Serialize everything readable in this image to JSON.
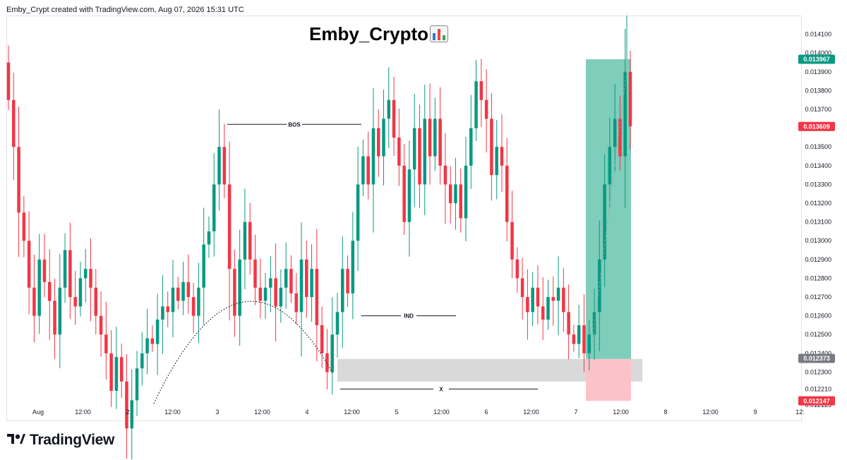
{
  "header": {
    "text": "Emby_Crypt created with TradingView.com, Aug 07, 2026 15:31 UTC"
  },
  "chart_title": "Emby_Crypto",
  "title_icon": "bar-chart-emoji-icon",
  "footer": {
    "brand": "TradingView",
    "logo_icon": "tradingview-logo-icon"
  },
  "colors": {
    "up": "#089981",
    "down": "#f23645",
    "tp_zone": "#7fcdbb",
    "sl_zone": "#fbc3c8",
    "demand_zone": "#d9d9d9",
    "price_badge_gray": "#787b86"
  },
  "chart_data": {
    "type": "candlestick",
    "ylim": [
      0.01214,
      0.01417
    ],
    "y_ticks": [
      "0.014100",
      "0.014000",
      "0.013900",
      "0.013800",
      "0.013700",
      "0.013600",
      "0.013500",
      "0.013400",
      "0.013300",
      "0.013200",
      "0.013100",
      "0.013000",
      "0.012900",
      "0.012800",
      "0.012700",
      "0.012600",
      "0.012500",
      "0.012400",
      "0.012300",
      "0.012210",
      "0.012125"
    ],
    "x_ticks": [
      "Aug",
      "12:00",
      "2",
      "12:00",
      "3",
      "12:00",
      "4",
      "12:00",
      "5",
      "12:00",
      "6",
      "12:00",
      "7",
      "12:00",
      "8",
      "12:00",
      "9",
      "12:"
    ],
    "price_badges": [
      {
        "label": "0.013967",
        "value": 0.013967,
        "color": "#089981"
      },
      {
        "label": "0.013609",
        "value": 0.013609,
        "color": "#f23645"
      },
      {
        "label": "0.012373",
        "value": 0.012373,
        "color": "#787b86"
      },
      {
        "label": "0.012147",
        "value": 0.012147,
        "color": "#f23645"
      }
    ],
    "annotations": [
      {
        "label": "BOS",
        "value": 0.01362
      },
      {
        "label": "IND",
        "value": 0.0126
      },
      {
        "label": "X",
        "value": 0.01221
      }
    ],
    "zones": [
      {
        "name": "demand",
        "low": 0.01225,
        "high": 0.01237
      },
      {
        "name": "take-profit",
        "low": 0.01237,
        "high": 0.013967
      },
      {
        "name": "stop-loss",
        "low": 0.012147,
        "high": 0.01237
      }
    ],
    "close_series": [
      0.01375,
      0.0135,
      0.01315,
      0.013,
      0.01275,
      0.0126,
      0.0129,
      0.01278,
      0.01268,
      0.0125,
      0.01275,
      0.01295,
      0.0127,
      0.01265,
      0.0128,
      0.01285,
      0.01275,
      0.0126,
      0.0125,
      0.0124,
      0.0122,
      0.01238,
      0.01225,
      0.012,
      0.01215,
      0.01232,
      0.0124,
      0.01248,
      0.01245,
      0.01258,
      0.01265,
      0.01262,
      0.01275,
      0.01268,
      0.01278,
      0.0127,
      0.0126,
      0.01275,
      0.01298,
      0.01305,
      0.0133,
      0.0135,
      0.0133,
      0.01285,
      0.0126,
      0.0129,
      0.0131,
      0.0129,
      0.01275,
      0.01268,
      0.01275,
      0.0128,
      0.01265,
      0.01275,
      0.01285,
      0.01272,
      0.01262,
      0.0129,
      0.0127,
      0.01285,
      0.01255,
      0.0124,
      0.0123,
      0.0125,
      0.01262,
      0.01285,
      0.01272,
      0.013,
      0.0133,
      0.01345,
      0.0133,
      0.0136,
      0.01345,
      0.01365,
      0.01375,
      0.01355,
      0.0134,
      0.0131,
      0.01338,
      0.0136,
      0.0133,
      0.01365,
      0.01345,
      0.01365,
      0.0134,
      0.0133,
      0.0132,
      0.0133,
      0.01312,
      0.0134,
      0.0136,
      0.01385,
      0.01375,
      0.01365,
      0.01335,
      0.0135,
      0.0134,
      0.0131,
      0.0129,
      0.0128,
      0.0127,
      0.01262,
      0.01275,
      0.01265,
      0.01258,
      0.0127,
      0.01268,
      0.01275,
      0.01262,
      0.0125,
      0.01245,
      0.01255,
      0.0124,
      0.0125,
      0.01262,
      0.0129,
      0.0133,
      0.0135,
      0.01365,
      0.01345,
      0.0139,
      0.01361
    ]
  }
}
